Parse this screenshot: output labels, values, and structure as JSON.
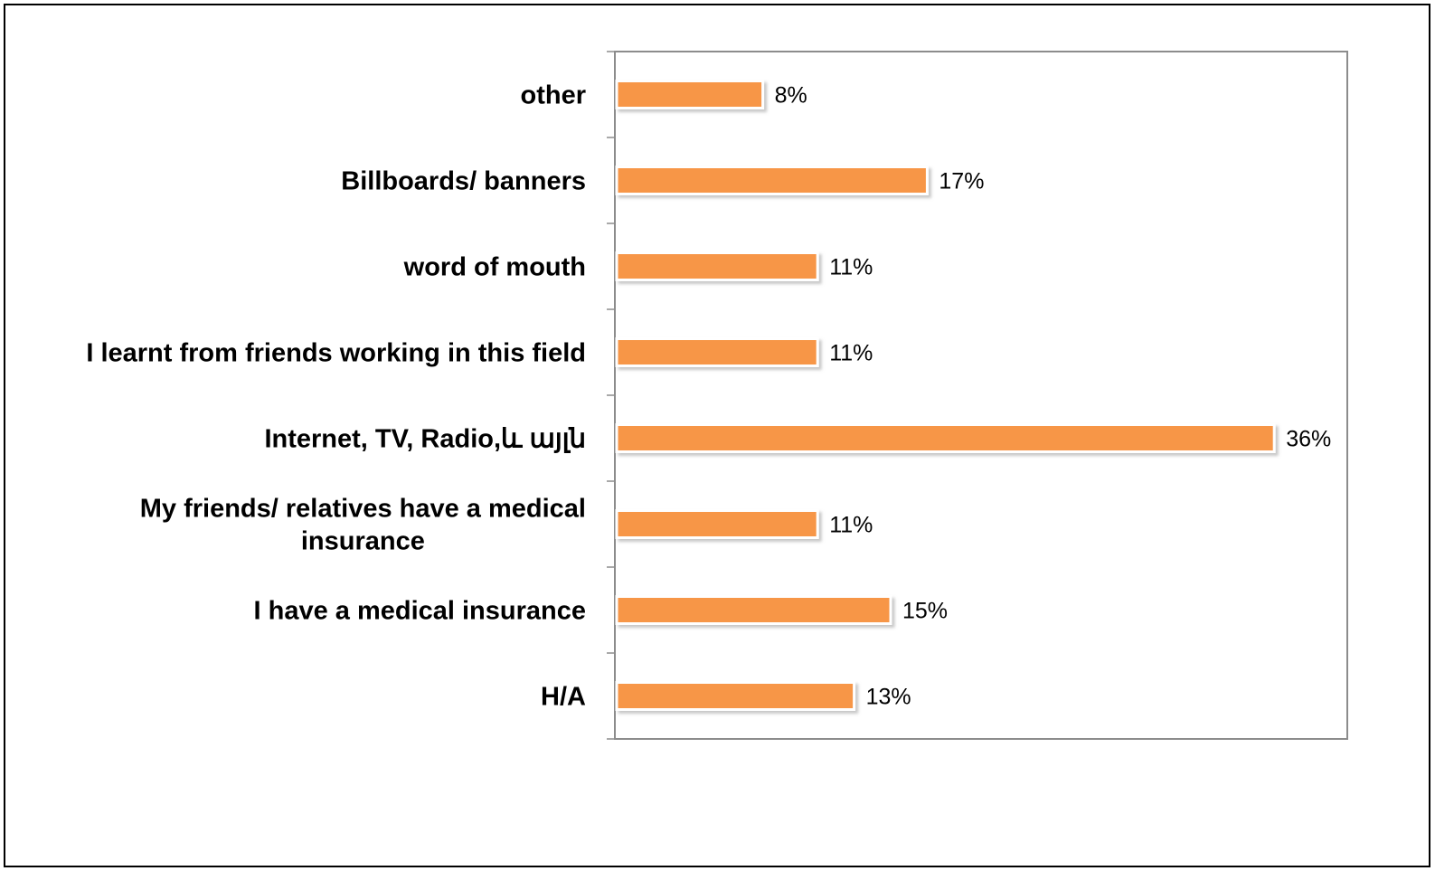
{
  "chart_data": {
    "type": "bar",
    "orientation": "horizontal",
    "categories": [
      "other",
      "Billboards/ banners",
      "word of mouth",
      "I learnt from friends working in this field",
      "Internet, TV, Radio,և այլն",
      "My friends/ relatives have a medical insurance",
      "I have a medical insurance",
      "H/A"
    ],
    "values": [
      8,
      17,
      11,
      11,
      36,
      11,
      15,
      13
    ],
    "data_labels": [
      "8%",
      "17%",
      "11%",
      "11%",
      "36%",
      "11%",
      "15%",
      "13%"
    ],
    "unit": "%",
    "xlim": [
      0,
      40
    ],
    "grid": false,
    "legend": "none",
    "bar_color": "#F79646",
    "title": "",
    "xlabel": "",
    "ylabel": ""
  }
}
